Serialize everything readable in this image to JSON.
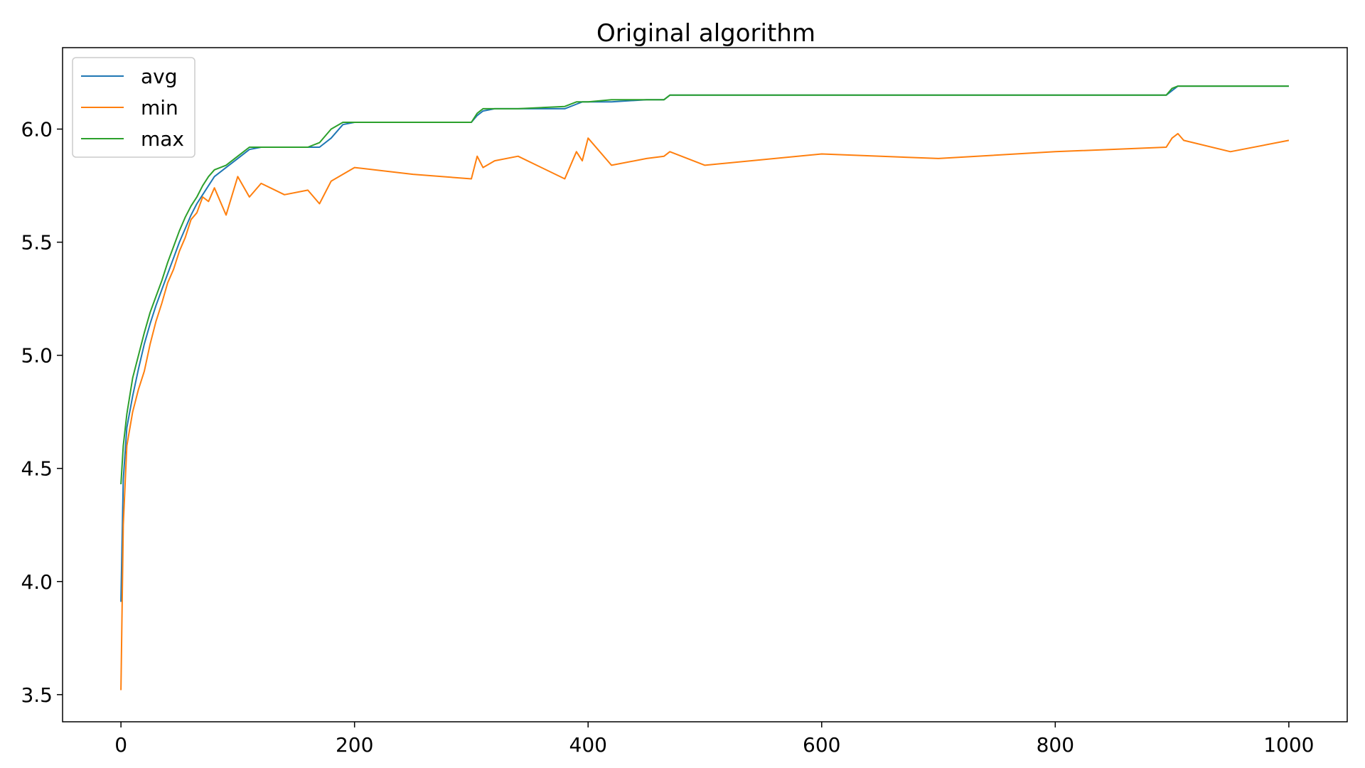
{
  "chart_data": {
    "type": "line",
    "title": "Original algorithm",
    "xlabel": "",
    "ylabel": "",
    "xlim": [
      -50,
      1050
    ],
    "ylim": [
      3.38,
      6.36
    ],
    "xticks": [
      0,
      200,
      400,
      600,
      800,
      1000
    ],
    "xtick_labels": [
      "0",
      "200",
      "400",
      "600",
      "800",
      "1000"
    ],
    "yticks": [
      3.5,
      4.0,
      4.5,
      5.0,
      5.5,
      6.0
    ],
    "ytick_labels": [
      "3.5",
      "4.0",
      "4.5",
      "5.0",
      "5.5",
      "6.0"
    ],
    "grid": false,
    "legend": "top-left",
    "x": [
      0,
      2,
      5,
      10,
      15,
      20,
      25,
      30,
      35,
      40,
      45,
      50,
      55,
      60,
      65,
      70,
      75,
      80,
      90,
      100,
      110,
      120,
      140,
      160,
      170,
      180,
      190,
      200,
      250,
      300,
      305,
      310,
      320,
      340,
      380,
      390,
      395,
      400,
      420,
      450,
      465,
      470,
      500,
      600,
      700,
      800,
      895,
      900,
      905,
      910,
      950,
      1000
    ],
    "series": [
      {
        "name": "avg",
        "color": "#1f77b4",
        "values": [
          3.91,
          4.45,
          4.68,
          4.82,
          4.94,
          5.05,
          5.14,
          5.22,
          5.29,
          5.36,
          5.43,
          5.5,
          5.56,
          5.62,
          5.67,
          5.71,
          5.75,
          5.79,
          5.83,
          5.87,
          5.91,
          5.92,
          5.92,
          5.92,
          5.92,
          5.96,
          6.02,
          6.03,
          6.03,
          6.03,
          6.06,
          6.08,
          6.09,
          6.09,
          6.09,
          6.11,
          6.12,
          6.12,
          6.12,
          6.13,
          6.13,
          6.15,
          6.15,
          6.15,
          6.15,
          6.15,
          6.15,
          6.17,
          6.19,
          6.19,
          6.19,
          6.19
        ]
      },
      {
        "name": "min",
        "color": "#ff7f0e",
        "values": [
          3.52,
          4.25,
          4.6,
          4.75,
          4.85,
          4.93,
          5.05,
          5.15,
          5.23,
          5.32,
          5.38,
          5.46,
          5.52,
          5.6,
          5.63,
          5.7,
          5.68,
          5.74,
          5.62,
          5.79,
          5.7,
          5.76,
          5.71,
          5.73,
          5.67,
          5.77,
          5.8,
          5.83,
          5.8,
          5.78,
          5.88,
          5.83,
          5.86,
          5.88,
          5.78,
          5.9,
          5.86,
          5.96,
          5.84,
          5.87,
          5.88,
          5.9,
          5.84,
          5.89,
          5.87,
          5.9,
          5.92,
          5.96,
          5.98,
          5.95,
          5.9,
          5.95
        ]
      },
      {
        "name": "max",
        "color": "#2ca02c",
        "values": [
          4.43,
          4.6,
          4.74,
          4.9,
          5.0,
          5.1,
          5.19,
          5.26,
          5.33,
          5.41,
          5.48,
          5.55,
          5.61,
          5.66,
          5.7,
          5.75,
          5.79,
          5.82,
          5.84,
          5.88,
          5.92,
          5.92,
          5.92,
          5.92,
          5.94,
          6.0,
          6.03,
          6.03,
          6.03,
          6.03,
          6.07,
          6.09,
          6.09,
          6.09,
          6.1,
          6.12,
          6.12,
          6.12,
          6.13,
          6.13,
          6.13,
          6.15,
          6.15,
          6.15,
          6.15,
          6.15,
          6.15,
          6.18,
          6.19,
          6.19,
          6.19,
          6.19
        ]
      }
    ]
  }
}
